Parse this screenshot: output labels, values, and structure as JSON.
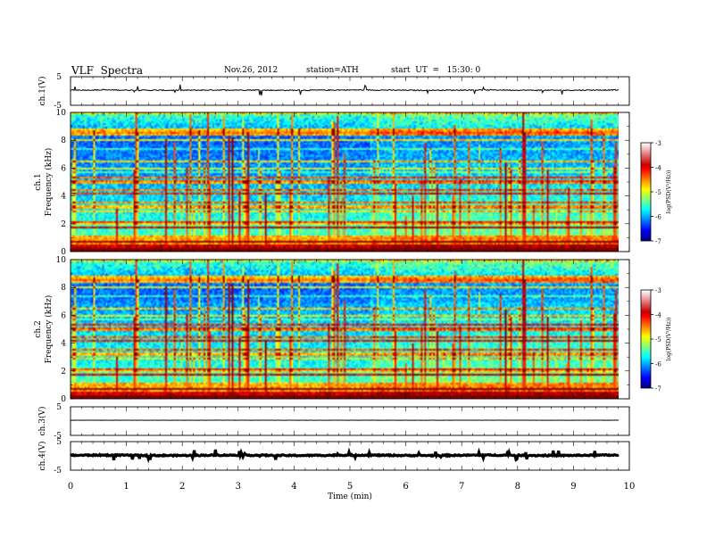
{
  "header": {
    "title": "VLF  Spectra",
    "date": "Nov.26, 2012",
    "station": "station=ATH",
    "start": "start  UT  =   15:30: 0"
  },
  "chart_data": {
    "type": "heatmap",
    "x": {
      "label": "Time  (min)",
      "range": [
        0,
        10
      ],
      "ticks": [
        "0",
        "1",
        "2",
        "3",
        "4",
        "5",
        "6",
        "7",
        "8",
        "9",
        "10"
      ]
    },
    "panels": [
      {
        "kind": "line",
        "ylabel": "ch.1(V)",
        "ylim": [
          -5,
          5
        ],
        "tick_labels": [
          "5",
          "-5"
        ],
        "baseline": 0.3,
        "noise": 0.35
      },
      {
        "kind": "spectrogram",
        "ylabel": "ch.1",
        "ylabel2": "Frequency  (kHz)",
        "ylim": [
          0,
          10
        ],
        "tick_labels": [
          "0",
          "2",
          "4",
          "6",
          "8",
          "10"
        ],
        "colorbar": {
          "label": "log(PSD(V²/Hz))",
          "range": [
            -7,
            -3
          ],
          "ticks": [
            "-3",
            "-4",
            "-5",
            "-6",
            "-7"
          ]
        }
      },
      {
        "kind": "spectrogram",
        "ylabel": "ch.2",
        "ylabel2": "Frequency  (kHz)",
        "ylim": [
          0,
          10
        ],
        "tick_labels": [
          "0",
          "2",
          "4",
          "6",
          "8",
          "10"
        ],
        "colorbar": {
          "label": "log(PSD(V²/Hz))",
          "range": [
            -7,
            -3
          ],
          "ticks": [
            "-3",
            "-4",
            "-5",
            "-6",
            "-7"
          ]
        }
      },
      {
        "kind": "line",
        "ylabel": "ch.3(V)",
        "ylim": [
          -5,
          5
        ],
        "tick_labels": [
          "5",
          "-5"
        ],
        "baseline": 0.3,
        "noise": 0.05
      },
      {
        "kind": "line",
        "ylabel": "ch.4(V)",
        "ylim": [
          -5,
          5
        ],
        "tick_labels": [
          "5",
          "-5"
        ],
        "baseline": 0.2,
        "noise": 0.4
      }
    ]
  }
}
